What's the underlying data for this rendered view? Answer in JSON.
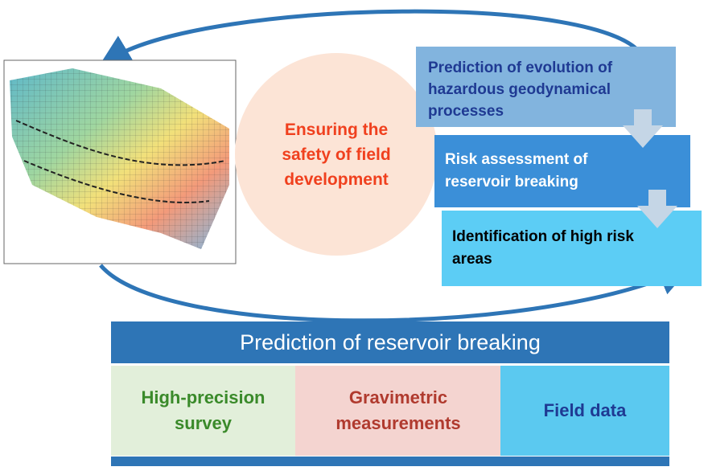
{
  "cycle": {
    "center": "Ensuring the safety of field development",
    "steps": [
      "Prediction of evolution of hazardous geodynamical processes",
      "Risk assessment of reservoir breaking",
      "Identification of high risk areas"
    ]
  },
  "table": {
    "header": "Prediction of reservoir breaking",
    "cells": [
      "High-precision survey",
      "Gravimetric measurements",
      "Field data"
    ]
  }
}
